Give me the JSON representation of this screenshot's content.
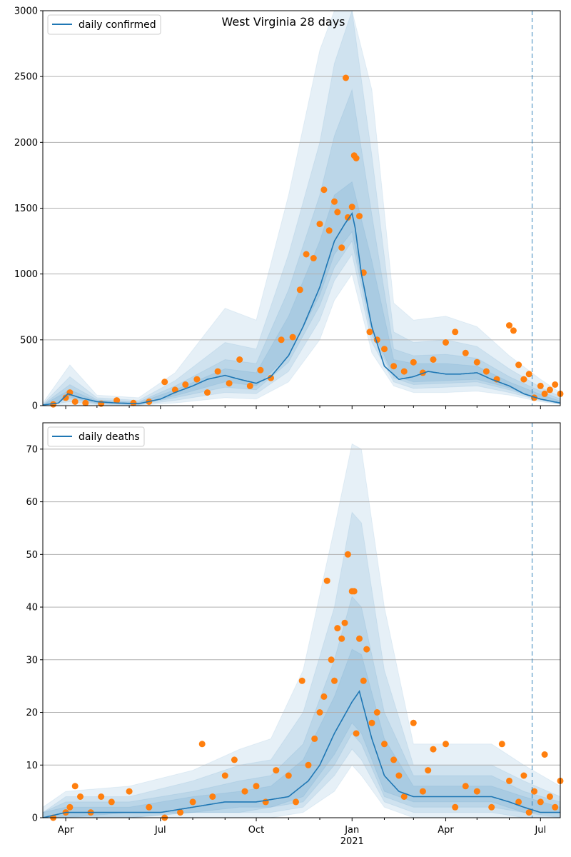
{
  "chart_data": [
    {
      "type": "line",
      "title": "West Virginia 28 days",
      "legend": {
        "label": "daily confirmed",
        "placement": "top-left"
      },
      "ylim": [
        0,
        3000
      ],
      "yticks": [
        0,
        500,
        1000,
        1500,
        2000,
        2500,
        3000
      ],
      "ytick_labels": [
        "0",
        "500",
        "1000",
        "1500",
        "2000",
        "2500",
        "3000"
      ],
      "xlim": [
        "2020-03-10",
        "2021-07-20"
      ],
      "forecast_start": "2021-06-23",
      "grid": "y",
      "model_line": {
        "color": "#1f77b4",
        "x": [
          "2020-03-10",
          "2020-03-25",
          "2020-04-03",
          "2020-04-15",
          "2020-05-01",
          "2020-05-20",
          "2020-06-10",
          "2020-07-01",
          "2020-07-15",
          "2020-08-01",
          "2020-08-15",
          "2020-09-01",
          "2020-09-15",
          "2020-10-01",
          "2020-10-15",
          "2020-11-01",
          "2020-11-15",
          "2020-12-01",
          "2020-12-15",
          "2020-12-25",
          "2021-01-01",
          "2021-01-04",
          "2021-01-10",
          "2021-01-20",
          "2021-02-01",
          "2021-02-15",
          "2021-03-01",
          "2021-03-15",
          "2021-04-01",
          "2021-04-15",
          "2021-05-01",
          "2021-05-15",
          "2021-06-01",
          "2021-06-15",
          "2021-07-01",
          "2021-07-20"
        ],
        "y": [
          5,
          20,
          90,
          60,
          30,
          20,
          15,
          50,
          100,
          150,
          200,
          230,
          200,
          170,
          220,
          380,
          600,
          900,
          1250,
          1380,
          1460,
          1350,
          1000,
          600,
          300,
          200,
          220,
          260,
          240,
          240,
          250,
          200,
          150,
          90,
          50,
          20
        ]
      },
      "bands": [
        {
          "opacity": 0.11,
          "x": [
            "2020-03-10",
            "2020-04-05",
            "2020-05-01",
            "2020-06-10",
            "2020-07-15",
            "2020-09-01",
            "2020-10-01",
            "2020-11-01",
            "2020-12-01",
            "2020-12-15",
            "2021-01-01",
            "2021-01-20",
            "2021-02-10",
            "2021-03-01",
            "2021-04-01",
            "2021-05-01",
            "2021-06-01",
            "2021-07-01",
            "2021-07-20"
          ],
          "low": [
            0,
            10,
            5,
            2,
            20,
            60,
            50,
            180,
            500,
            800,
            1000,
            400,
            150,
            100,
            100,
            110,
            80,
            30,
            10
          ],
          "high": [
            20,
            310,
            80,
            60,
            250,
            740,
            650,
            1600,
            2700,
            3000,
            3000,
            2400,
            780,
            650,
            680,
            600,
            380,
            200,
            100
          ]
        },
        {
          "opacity": 0.11,
          "x": [
            "2020-03-10",
            "2020-04-05",
            "2020-05-01",
            "2020-06-10",
            "2020-07-15",
            "2020-09-01",
            "2020-10-01",
            "2020-11-01",
            "2020-12-01",
            "2020-12-15",
            "2021-01-01",
            "2021-01-20",
            "2021-02-10",
            "2021-03-01",
            "2021-04-01",
            "2021-05-01",
            "2021-06-01",
            "2021-07-01",
            "2021-07-20"
          ],
          "low": [
            0,
            30,
            10,
            5,
            40,
            100,
            90,
            260,
            650,
            950,
            1150,
            480,
            180,
            130,
            140,
            150,
            100,
            40,
            12
          ],
          "high": [
            12,
            220,
            60,
            40,
            190,
            480,
            430,
            1150,
            2000,
            2600,
            3000,
            1900,
            560,
            480,
            500,
            450,
            280,
            140,
            70
          ]
        },
        {
          "opacity": 0.11,
          "x": [
            "2020-03-10",
            "2020-04-05",
            "2020-05-01",
            "2020-06-10",
            "2020-07-15",
            "2020-09-01",
            "2020-10-01",
            "2020-11-01",
            "2020-12-01",
            "2020-12-15",
            "2021-01-01",
            "2021-01-20",
            "2021-02-10",
            "2021-03-01",
            "2021-04-01",
            "2021-05-01",
            "2021-06-01",
            "2021-07-01",
            "2021-07-20"
          ],
          "low": [
            0,
            50,
            15,
            8,
            60,
            140,
            120,
            330,
            760,
            1050,
            1250,
            540,
            210,
            160,
            170,
            180,
            120,
            45,
            15
          ],
          "high": [
            8,
            160,
            45,
            28,
            150,
            350,
            320,
            880,
            1600,
            2050,
            2400,
            1450,
            430,
            380,
            390,
            360,
            220,
            110,
            50
          ]
        },
        {
          "opacity": 0.11,
          "x": [
            "2020-03-10",
            "2020-04-05",
            "2020-05-01",
            "2020-06-10",
            "2020-07-15",
            "2020-09-01",
            "2020-10-01",
            "2020-11-01",
            "2020-12-01",
            "2020-12-15",
            "2021-01-01",
            "2021-01-20",
            "2021-02-10",
            "2021-03-01",
            "2021-04-01",
            "2021-05-01",
            "2021-06-01",
            "2021-07-01",
            "2021-07-20"
          ],
          "low": [
            0,
            65,
            20,
            10,
            75,
            180,
            150,
            380,
            840,
            1150,
            1320,
            580,
            230,
            180,
            190,
            200,
            135,
            50,
            16
          ],
          "high": [
            6,
            120,
            35,
            22,
            120,
            280,
            250,
            680,
            1250,
            1600,
            1700,
            1100,
            350,
            320,
            320,
            300,
            180,
            85,
            35
          ]
        }
      ],
      "observations": {
        "color": "#ff7f0e",
        "x": [
          "2020-03-20",
          "2020-04-01",
          "2020-04-05",
          "2020-04-10",
          "2020-04-20",
          "2020-05-05",
          "2020-05-20",
          "2020-06-05",
          "2020-06-20",
          "2020-07-05",
          "2020-07-15",
          "2020-07-25",
          "2020-08-05",
          "2020-08-15",
          "2020-08-25",
          "2020-09-05",
          "2020-09-15",
          "2020-09-25",
          "2020-10-05",
          "2020-10-15",
          "2020-10-25",
          "2020-11-05",
          "2020-11-12",
          "2020-11-18",
          "2020-11-25",
          "2020-12-01",
          "2020-12-05",
          "2020-12-10",
          "2020-12-15",
          "2020-12-18",
          "2020-12-22",
          "2020-12-26",
          "2020-12-28",
          "2021-01-01",
          "2021-01-03",
          "2021-01-05",
          "2021-01-08",
          "2021-01-12",
          "2021-01-18",
          "2021-01-25",
          "2021-02-01",
          "2021-02-10",
          "2021-02-20",
          "2021-03-01",
          "2021-03-10",
          "2021-03-20",
          "2021-04-01",
          "2021-04-10",
          "2021-04-20",
          "2021-05-01",
          "2021-05-10",
          "2021-05-20",
          "2021-06-01",
          "2021-06-05",
          "2021-06-10",
          "2021-06-15",
          "2021-06-20",
          "2021-06-25",
          "2021-07-01",
          "2021-07-05",
          "2021-07-10",
          "2021-07-15",
          "2021-07-20"
        ],
        "y": [
          10,
          60,
          100,
          30,
          20,
          15,
          40,
          20,
          30,
          180,
          120,
          160,
          200,
          100,
          260,
          170,
          350,
          150,
          270,
          210,
          500,
          520,
          880,
          1150,
          1120,
          1380,
          1640,
          1330,
          1550,
          1470,
          1200,
          2490,
          1430,
          1510,
          1900,
          1880,
          1440,
          1010,
          560,
          500,
          430,
          300,
          260,
          330,
          250,
          350,
          480,
          560,
          400,
          330,
          260,
          200,
          610,
          570,
          310,
          200,
          240,
          60,
          150,
          90,
          120,
          160,
          90
        ]
      }
    },
    {
      "type": "line",
      "legend": {
        "label": "daily deaths",
        "placement": "top-left"
      },
      "ylim": [
        0,
        75
      ],
      "yticks": [
        0,
        10,
        20,
        30,
        40,
        50,
        60,
        70
      ],
      "ytick_labels": [
        "0",
        "10",
        "20",
        "30",
        "40",
        "50",
        "60",
        "70"
      ],
      "xlim": [
        "2020-03-10",
        "2021-07-20"
      ],
      "xticks": [
        "2020-04-01",
        "2020-07-01",
        "2020-10-01",
        "2021-01-01",
        "2021-04-01",
        "2021-07-01"
      ],
      "xtick_labels": [
        "Apr",
        "Jul",
        "Oct",
        "Jan",
        "Apr",
        "Jul"
      ],
      "xtick_sublabel": "2021",
      "forecast_start": "2021-06-23",
      "grid": "y",
      "model_line": {
        "color": "#1f77b4",
        "x": [
          "2020-03-10",
          "2020-04-01",
          "2020-05-01",
          "2020-06-01",
          "2020-07-01",
          "2020-08-01",
          "2020-09-01",
          "2020-10-01",
          "2020-11-01",
          "2020-11-20",
          "2020-12-01",
          "2020-12-15",
          "2021-01-01",
          "2021-01-08",
          "2021-01-20",
          "2021-02-01",
          "2021-02-15",
          "2021-03-01",
          "2021-04-01",
          "2021-05-01",
          "2021-05-15",
          "2021-06-01",
          "2021-06-15",
          "2021-07-01",
          "2021-07-20"
        ],
        "y": [
          0,
          1,
          1,
          1,
          1,
          2,
          3,
          3,
          4,
          7,
          10,
          16,
          22,
          24,
          15,
          8,
          5,
          4,
          4,
          4,
          4,
          3,
          2,
          1,
          1
        ]
      },
      "bands": [
        {
          "opacity": 0.11,
          "x": [
            "2020-03-10",
            "2020-04-01",
            "2020-06-01",
            "2020-08-01",
            "2020-09-15",
            "2020-10-15",
            "2020-11-15",
            "2020-12-15",
            "2021-01-01",
            "2021-01-10",
            "2021-02-01",
            "2021-03-01",
            "2021-04-01",
            "2021-05-15",
            "2021-06-15",
            "2021-07-20"
          ],
          "low": [
            0,
            0,
            0,
            0,
            0,
            0,
            1,
            5,
            10,
            8,
            2,
            0,
            0,
            0,
            0,
            0
          ],
          "high": [
            2,
            5,
            6,
            9,
            13,
            15,
            28,
            55,
            71,
            70,
            40,
            14,
            14,
            14,
            10,
            6
          ]
        },
        {
          "opacity": 0.11,
          "x": [
            "2020-03-10",
            "2020-04-01",
            "2020-06-01",
            "2020-08-01",
            "2020-09-15",
            "2020-10-15",
            "2020-11-15",
            "2020-12-15",
            "2021-01-01",
            "2021-01-10",
            "2021-02-01",
            "2021-03-01",
            "2021-04-01",
            "2021-05-15",
            "2021-06-15",
            "2021-07-20"
          ],
          "low": [
            0,
            0,
            0,
            1,
            1,
            1,
            2,
            8,
            13,
            11,
            3,
            1,
            1,
            1,
            0,
            0
          ],
          "high": [
            1,
            4,
            4,
            7,
            10,
            11,
            20,
            40,
            58,
            56,
            28,
            10,
            10,
            10,
            7,
            4
          ]
        },
        {
          "opacity": 0.11,
          "x": [
            "2020-03-10",
            "2020-04-01",
            "2020-06-01",
            "2020-08-01",
            "2020-09-15",
            "2020-10-15",
            "2020-11-15",
            "2020-12-15",
            "2021-01-01",
            "2021-01-10",
            "2021-02-01",
            "2021-03-01",
            "2021-04-01",
            "2021-05-15",
            "2021-06-15",
            "2021-07-20"
          ],
          "low": [
            0,
            0,
            0,
            1,
            1,
            2,
            3,
            10,
            16,
            14,
            4,
            2,
            2,
            2,
            1,
            0
          ],
          "high": [
            1,
            3,
            3,
            5,
            7,
            8,
            14,
            30,
            42,
            40,
            20,
            8,
            8,
            8,
            5,
            3
          ]
        },
        {
          "opacity": 0.11,
          "x": [
            "2020-03-10",
            "2020-04-01",
            "2020-06-01",
            "2020-08-01",
            "2020-09-15",
            "2020-10-15",
            "2020-11-15",
            "2020-12-15",
            "2021-01-01",
            "2021-01-10",
            "2021-02-01",
            "2021-03-01",
            "2021-04-01",
            "2021-05-15",
            "2021-06-15",
            "2021-07-20"
          ],
          "low": [
            0,
            0,
            1,
            1,
            2,
            2,
            4,
            12,
            18,
            16,
            5,
            3,
            3,
            3,
            1,
            1
          ],
          "high": [
            1,
            2,
            2,
            4,
            5,
            6,
            11,
            23,
            32,
            31,
            15,
            6,
            6,
            6,
            4,
            2
          ]
        }
      ],
      "observations": {
        "color": "#ff7f0e",
        "x": [
          "2020-03-20",
          "2020-04-01",
          "2020-04-05",
          "2020-04-10",
          "2020-04-15",
          "2020-04-25",
          "2020-05-05",
          "2020-05-15",
          "2020-06-01",
          "2020-06-20",
          "2020-07-05",
          "2020-07-20",
          "2020-08-01",
          "2020-08-10",
          "2020-08-20",
          "2020-09-01",
          "2020-09-10",
          "2020-09-20",
          "2020-10-01",
          "2020-10-10",
          "2020-10-20",
          "2020-11-01",
          "2020-11-08",
          "2020-11-14",
          "2020-11-20",
          "2020-11-26",
          "2020-12-01",
          "2020-12-05",
          "2020-12-08",
          "2020-12-12",
          "2020-12-15",
          "2020-12-18",
          "2020-12-22",
          "2020-12-25",
          "2020-12-28",
          "2021-01-01",
          "2021-01-03",
          "2021-01-05",
          "2021-01-08",
          "2021-01-12",
          "2021-01-15",
          "2021-01-20",
          "2021-01-25",
          "2021-02-01",
          "2021-02-10",
          "2021-02-15",
          "2021-02-20",
          "2021-03-01",
          "2021-03-10",
          "2021-03-15",
          "2021-03-20",
          "2021-04-01",
          "2021-04-10",
          "2021-04-20",
          "2021-05-01",
          "2021-05-15",
          "2021-05-25",
          "2021-06-01",
          "2021-06-10",
          "2021-06-15",
          "2021-06-20",
          "2021-06-25",
          "2021-07-01",
          "2021-07-05",
          "2021-07-10",
          "2021-07-15",
          "2021-07-20"
        ],
        "y": [
          0,
          1,
          2,
          6,
          4,
          1,
          4,
          3,
          5,
          2,
          0,
          1,
          3,
          14,
          4,
          8,
          11,
          5,
          6,
          3,
          9,
          8,
          3,
          26,
          10,
          15,
          20,
          23,
          45,
          30,
          26,
          36,
          34,
          37,
          50,
          43,
          43,
          16,
          34,
          26,
          32,
          18,
          20,
          14,
          11,
          8,
          4,
          18,
          5,
          9,
          13,
          14,
          2,
          6,
          5,
          2,
          14,
          7,
          3,
          8,
          1,
          5,
          3,
          12,
          4,
          2,
          7
        ]
      }
    }
  ]
}
